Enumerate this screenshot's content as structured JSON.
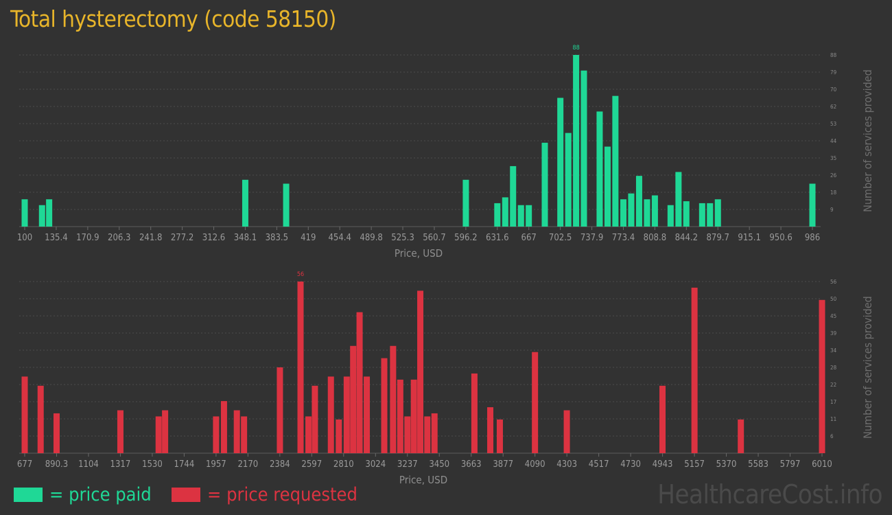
{
  "title": "Total hysterectomy (code 58150)",
  "colors": {
    "paid": "#1fd896",
    "requested": "#dc3341",
    "title": "#e8b52a"
  },
  "legend": {
    "paid": "= price paid",
    "requested": "= price requested"
  },
  "brand": "HealthcareCost.info",
  "chart_data": [
    {
      "name": "price-paid",
      "type": "bar",
      "xlabel": "Price, USD",
      "ylabel": "Number of services provided",
      "xlim": [
        100,
        986
      ],
      "ylim": [
        0,
        88
      ],
      "x_ticks": [
        "100",
        "135.4",
        "170.9",
        "206.3",
        "241.8",
        "277.2",
        "312.6",
        "348.1",
        "383.5",
        "419",
        "454.4",
        "489.8",
        "525.3",
        "560.7",
        "596.2",
        "631.6",
        "667",
        "702.5",
        "737.9",
        "773.4",
        "808.8",
        "844.2",
        "879.7",
        "915.1",
        "950.6",
        "986"
      ],
      "y_ticks": [
        "9",
        "18",
        "26",
        "35",
        "44",
        "53",
        "62",
        "70",
        "79",
        "88"
      ],
      "peak_label": "88",
      "x": [
        100,
        119.5,
        127.5,
        348.1,
        394.1,
        596.2,
        631.6,
        640.5,
        649.3,
        658.2,
        667,
        685,
        702.5,
        711.4,
        720.2,
        729,
        746.7,
        755.6,
        764.4,
        773.4,
        782.2,
        791.1,
        800,
        808.8,
        826.5,
        835.4,
        844.2,
        862,
        870.8,
        879.7,
        986
      ],
      "values": [
        14,
        11,
        14,
        24,
        22,
        24,
        12,
        15,
        31,
        11,
        11,
        43,
        66,
        48,
        88,
        80,
        59,
        41,
        67,
        14,
        17,
        26,
        14,
        16,
        11,
        28,
        13,
        12,
        12,
        14,
        22
      ]
    },
    {
      "name": "price-requested",
      "type": "bar",
      "xlabel": "Price, USD",
      "ylabel": "Number of services provided",
      "xlim": [
        677,
        6010
      ],
      "ylim": [
        0,
        56
      ],
      "x_ticks": [
        "677",
        "890.3",
        "1104",
        "1317",
        "1530",
        "1744",
        "1957",
        "2170",
        "2384",
        "2597",
        "2810",
        "3024",
        "3237",
        "3450",
        "3663",
        "3877",
        "4090",
        "4303",
        "4517",
        "4730",
        "4943",
        "5157",
        "5370",
        "5583",
        "5797",
        "6010"
      ],
      "y_ticks": [
        "6",
        "11",
        "17",
        "22",
        "28",
        "34",
        "39",
        "45",
        "50",
        "56"
      ],
      "peak_label": "56",
      "x": [
        677,
        783.6,
        890.3,
        1317,
        1573,
        1616,
        1957,
        2010,
        2096,
        2144,
        2384,
        2522,
        2575,
        2618,
        2725,
        2778,
        2831,
        2874,
        2917,
        2965,
        3082,
        3141,
        3189,
        3237,
        3280,
        3323,
        3370,
        3418,
        3685,
        3791,
        3855,
        4090,
        4303,
        4943,
        5157,
        5467,
        6010
      ],
      "values": [
        25,
        22,
        13,
        14,
        12,
        14,
        12,
        17,
        14,
        12,
        28,
        56,
        12,
        22,
        25,
        11,
        25,
        35,
        46,
        25,
        31,
        35,
        24,
        12,
        24,
        53,
        12,
        13,
        26,
        15,
        11,
        33,
        14,
        22,
        54,
        11,
        50
      ]
    }
  ]
}
